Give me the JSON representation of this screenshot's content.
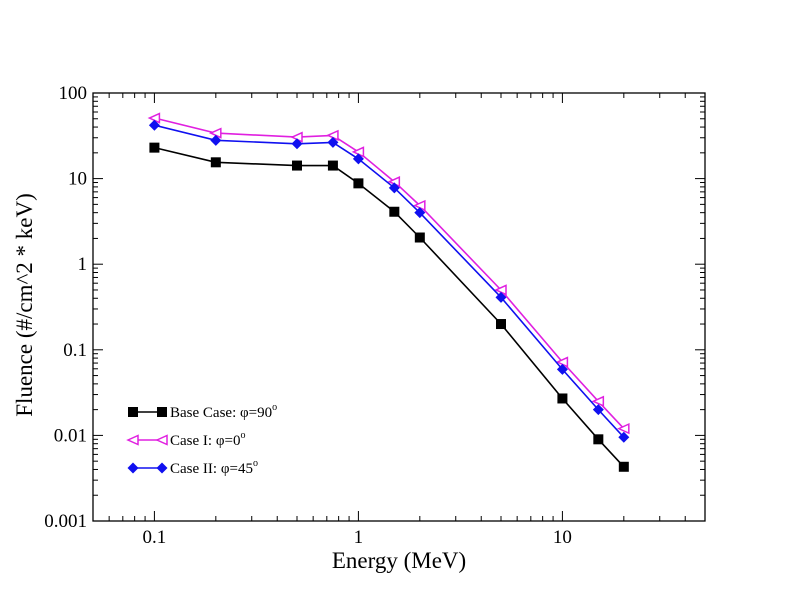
{
  "chart_data": {
    "type": "line",
    "xscale": "log",
    "yscale": "log",
    "xlim": [
      0.05,
      50
    ],
    "ylim": [
      0.001,
      100
    ],
    "xlabel": "Energy (MeV)",
    "ylabel": "Fluence (#/cm^2 * keV)",
    "xticks": [
      {
        "value": 0.1,
        "label": "0.1"
      },
      {
        "value": 1,
        "label": "1"
      },
      {
        "value": 10,
        "label": "10"
      }
    ],
    "yticks": [
      {
        "value": 100,
        "label": "100"
      },
      {
        "value": 10,
        "label": "10"
      },
      {
        "value": 1,
        "label": "1"
      },
      {
        "value": 0.1,
        "label": "0.1"
      },
      {
        "value": 0.01,
        "label": "0.01"
      },
      {
        "value": 0.001,
        "label": "0.001"
      }
    ],
    "x": [
      0.1,
      0.2,
      0.5,
      0.75,
      1,
      1.5,
      2,
      5,
      10,
      15,
      20
    ],
    "series": [
      {
        "name": "Base Case",
        "legend_prefix": "Base Case: ",
        "legend_symbol": "φ",
        "legend_value": "=90",
        "legend_sup": "o",
        "color": "#000000",
        "marker": "square",
        "values": [
          23,
          15.5,
          14.2,
          14.2,
          8.8,
          4.1,
          2.05,
          0.2,
          0.027,
          0.009,
          0.0043
        ]
      },
      {
        "name": "Case I",
        "legend_prefix": "Case I:   ",
        "legend_symbol": "φ",
        "legend_value": "=0",
        "legend_sup": "o",
        "color": "#e020e0",
        "marker": "triangle-left",
        "values": [
          51,
          34,
          30.5,
          32,
          20.5,
          9.2,
          4.85,
          0.5,
          0.072,
          0.025,
          0.012
        ]
      },
      {
        "name": "Case II",
        "legend_prefix": "Case II:  ",
        "legend_symbol": "φ",
        "legend_value": "=45",
        "legend_sup": "o",
        "color": "#1010f0",
        "marker": "diamond",
        "values": [
          42,
          28,
          25.5,
          26.5,
          17,
          7.8,
          4.0,
          0.41,
          0.059,
          0.02,
          0.0095
        ]
      }
    ]
  }
}
